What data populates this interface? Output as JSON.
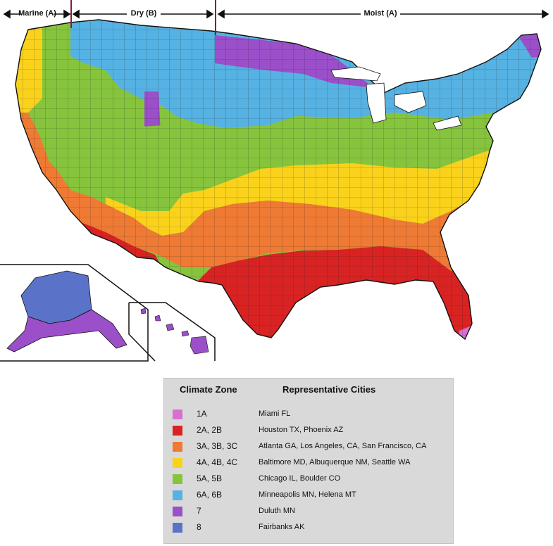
{
  "regions": {
    "marine": "Marine (A)",
    "dry": "Dry (B)",
    "moist": "Moist (A)"
  },
  "colors": {
    "zone1": "#d96fd0",
    "zone2": "#d92323",
    "zone3": "#ef7a34",
    "zone4": "#fad21c",
    "zone5": "#86c43d",
    "zone6": "#55b2e3",
    "zone7": "#9b4fc9",
    "zone8": "#5b72c9",
    "divider": "#8b1a3a"
  },
  "legend": {
    "header_zone": "Climate Zone",
    "header_cities": "Representative Cities",
    "rows": [
      {
        "zone": "1A",
        "cities": "Miami FL",
        "color": "#d96fd0"
      },
      {
        "zone": "2A, 2B",
        "cities": "Houston TX,  Phoenix AZ",
        "color": "#d92323"
      },
      {
        "zone": "3A, 3B, 3C",
        "cities": "Atlanta GA, Los Angeles, CA, San Francisco, CA",
        "color": "#ef7a34"
      },
      {
        "zone": "4A, 4B, 4C",
        "cities": "Baltimore MD, Albuquerque NM, Seattle WA",
        "color": "#fad21c"
      },
      {
        "zone": "5A, 5B",
        "cities": "Chicago IL, Boulder CO",
        "color": "#86c43d"
      },
      {
        "zone": "6A, 6B",
        "cities": "Minneapolis MN, Helena MT",
        "color": "#55b2e3"
      },
      {
        "zone": "7",
        "cities": "Duluth MN",
        "color": "#9b4fc9"
      },
      {
        "zone": "8",
        "cities": "Fairbanks AK",
        "color": "#5b72c9"
      }
    ]
  }
}
